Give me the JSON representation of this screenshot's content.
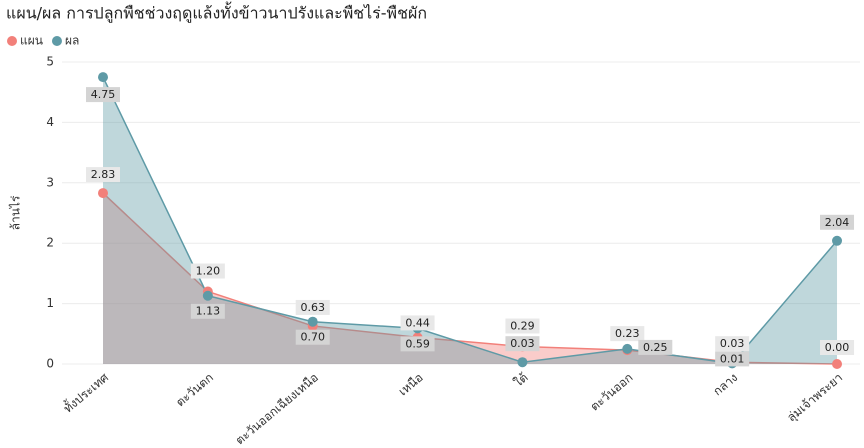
{
  "chart_data": {
    "type": "area",
    "title": "แผน/ผล การปลูกพืชช่วงฤดูแล้งทั้งข้าวนาปรังและพืชไร่-พืชผัก",
    "y_label": "ล้านไร่",
    "categories": [
      "ทั้งประเทศ",
      "ตะวันตก",
      "ตะวันออกเฉียงเหนือ",
      "เหนือ",
      "ใต้",
      "ตะวันออก",
      "กลาง",
      "ลุ่มเจ้าพระยา"
    ],
    "series": [
      {
        "name": "แผน",
        "color": "#f2807a",
        "values": [
          2.83,
          1.2,
          0.63,
          0.44,
          0.29,
          0.23,
          0.03,
          0
        ],
        "value_labels": [
          "2.83",
          "1.20",
          "0.63",
          "0.44",
          "0.29",
          "0.23",
          "0.03",
          "0.00"
        ]
      },
      {
        "name": "ผล",
        "color": "#5e9aa6",
        "values": [
          4.75,
          1.13,
          0.7,
          0.59,
          0.03,
          0.25,
          0.01,
          2.04
        ],
        "value_labels": [
          "4.75",
          "1.13",
          "0.70",
          "0.59",
          "0.03",
          "0.25",
          "0.01",
          "2.04"
        ]
      }
    ],
    "ylim": [
      0,
      5
    ],
    "yticks": [
      0,
      1,
      2,
      3,
      4,
      5
    ],
    "grid": true,
    "legend": "top-left"
  }
}
